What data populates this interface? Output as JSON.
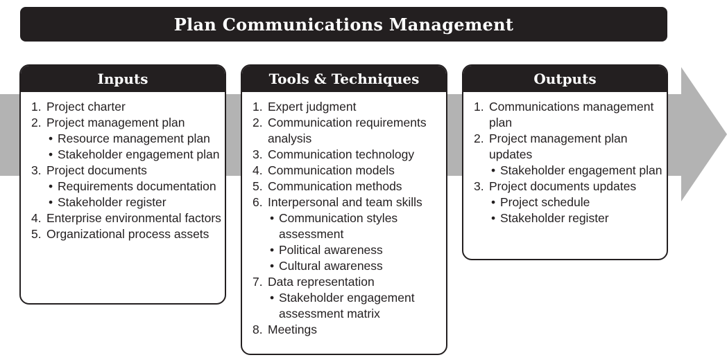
{
  "title": "Plan Communications Management",
  "colors": {
    "dark": "#231f20",
    "arrow": "#b3b3b3",
    "background": "#ffffff"
  },
  "panels": [
    {
      "heading": "Inputs",
      "items": [
        {
          "num": "1.",
          "text": "Project charter",
          "subs": []
        },
        {
          "num": "2.",
          "text": "Project management plan",
          "subs": [
            "Resource management plan",
            "Stakeholder engagement plan"
          ]
        },
        {
          "num": "3.",
          "text": "Project documents",
          "subs": [
            "Requirements documentation",
            "Stakeholder register"
          ]
        },
        {
          "num": "4.",
          "text": "Enterprise environmental factors",
          "subs": []
        },
        {
          "num": "5.",
          "text": "Organizational process assets",
          "subs": []
        }
      ]
    },
    {
      "heading": "Tools & Techniques",
      "items": [
        {
          "num": "1.",
          "text": "Expert judgment",
          "subs": []
        },
        {
          "num": "2.",
          "text": "Communication requirements analysis",
          "subs": []
        },
        {
          "num": "3.",
          "text": "Communication technology",
          "subs": []
        },
        {
          "num": "4.",
          "text": "Communication models",
          "subs": []
        },
        {
          "num": "5.",
          "text": "Communication methods",
          "subs": []
        },
        {
          "num": "6.",
          "text": "Interpersonal and team skills",
          "subs": [
            "Communication styles assessment",
            "Political awareness",
            "Cultural awareness"
          ]
        },
        {
          "num": "7.",
          "text": "Data representation",
          "subs": [
            "Stakeholder engagement assessment matrix"
          ]
        },
        {
          "num": "8.",
          "text": "Meetings",
          "subs": []
        }
      ]
    },
    {
      "heading": "Outputs",
      "items": [
        {
          "num": "1.",
          "text": "Communications management plan",
          "subs": []
        },
        {
          "num": "2.",
          "text": "Project management plan updates",
          "subs": [
            "Stakeholder engagement plan"
          ]
        },
        {
          "num": "3.",
          "text": "Project documents updates",
          "subs": [
            "Project schedule",
            "Stakeholder register"
          ]
        }
      ]
    }
  ]
}
